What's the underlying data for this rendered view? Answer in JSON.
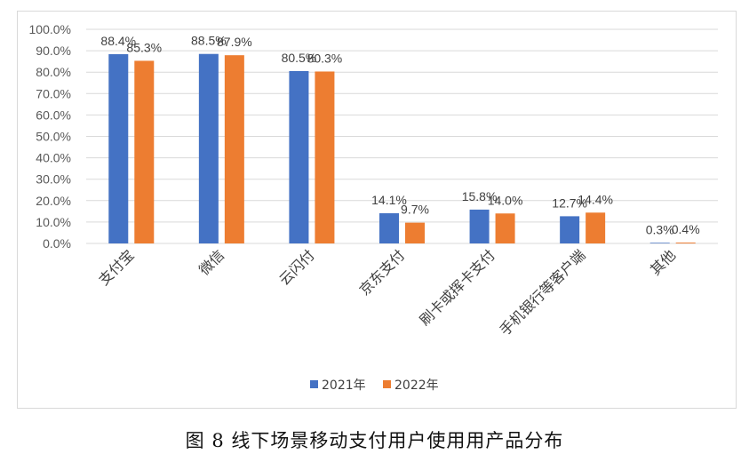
{
  "caption": "图 8  线下场景移动支付用户使用用产品分布",
  "chart_data": {
    "type": "bar",
    "categories": [
      "支付宝",
      "微信",
      "云闪付",
      "京东支付",
      "刷卡或挥卡支付",
      "手机银行等客户端",
      "其他"
    ],
    "series": [
      {
        "name": "2021年",
        "color": "#4472C4",
        "values": [
          88.4,
          88.5,
          80.5,
          14.1,
          15.8,
          12.7,
          0.3
        ]
      },
      {
        "name": "2022年",
        "color": "#ED7D31",
        "values": [
          85.3,
          87.9,
          80.3,
          9.7,
          14.0,
          14.4,
          0.4
        ]
      }
    ],
    "data_labels": [
      [
        "88.4%",
        "88.5%",
        "80.5%",
        "14.1%",
        "15.8%",
        "12.7%",
        "0.3%"
      ],
      [
        "85.3%",
        "87.9%",
        "80.3%",
        "9.7%",
        "14.0%",
        "14.4%",
        "0.4%"
      ]
    ],
    "yticks": [
      "0.0%",
      "10.0%",
      "20.0%",
      "30.0%",
      "40.0%",
      "50.0%",
      "60.0%",
      "70.0%",
      "80.0%",
      "90.0%",
      "100.0%"
    ],
    "ylim": [
      0,
      100
    ],
    "grid": true,
    "legend_position": "bottom"
  }
}
